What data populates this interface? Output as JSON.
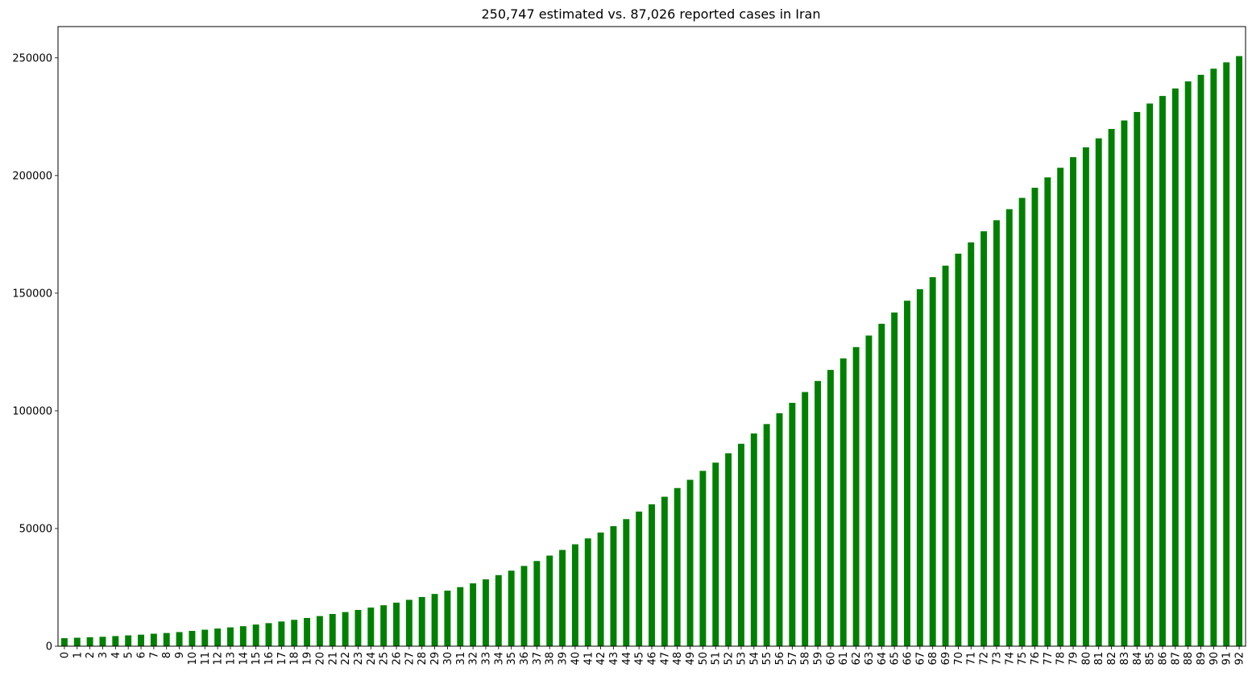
{
  "chart_data": {
    "type": "bar",
    "title": "250,747 estimated vs. 87,026 reported cases in Iran",
    "xlabel": "",
    "ylabel": "",
    "ylim": [
      0,
      263287
    ],
    "yticks": [
      0,
      50000,
      100000,
      150000,
      200000,
      250000
    ],
    "ytick_labels": [
      "0",
      "50000",
      "100000",
      "150000",
      "200000",
      "250000"
    ],
    "grid": false,
    "legend": "none",
    "bar_color": "#008000",
    "categories": [
      "0",
      "1",
      "2",
      "3",
      "4",
      "5",
      "6",
      "7",
      "8",
      "9",
      "10",
      "11",
      "12",
      "13",
      "14",
      "15",
      "16",
      "17",
      "18",
      "19",
      "20",
      "21",
      "22",
      "23",
      "24",
      "25",
      "26",
      "27",
      "28",
      "29",
      "30",
      "31",
      "32",
      "33",
      "34",
      "35",
      "36",
      "37",
      "38",
      "39",
      "40",
      "41",
      "42",
      "43",
      "44",
      "45",
      "46",
      "47",
      "48",
      "49",
      "50",
      "51",
      "52",
      "53",
      "54",
      "55",
      "56",
      "57",
      "58",
      "59",
      "60",
      "61",
      "62",
      "63",
      "64",
      "65",
      "66",
      "67",
      "68",
      "69",
      "70",
      "71",
      "72",
      "73",
      "74",
      "75",
      "76",
      "77",
      "78",
      "79",
      "80",
      "81",
      "82",
      "83",
      "84",
      "85",
      "86",
      "87",
      "88",
      "89",
      "90",
      "91",
      "92"
    ],
    "values": [
      3400,
      3600,
      3800,
      4000,
      4300,
      4600,
      4900,
      5300,
      5600,
      6000,
      6500,
      7000,
      7500,
      8000,
      8500,
      9200,
      9800,
      10500,
      11200,
      12000,
      12800,
      13700,
      14500,
      15400,
      16400,
      17400,
      18500,
      19700,
      20900,
      22200,
      23600,
      25100,
      26700,
      28400,
      30200,
      32100,
      34100,
      36200,
      38500,
      40900,
      43300,
      45800,
      48300,
      51000,
      54000,
      57200,
      60300,
      63500,
      67200,
      70700,
      74500,
      78000,
      82000,
      86000,
      90400,
      94400,
      99000,
      103400,
      108000,
      112700,
      117400,
      122300,
      127100,
      132000,
      137000,
      141800,
      146800,
      151700,
      156800,
      161700,
      166800,
      171600,
      176300,
      181000,
      185700,
      190500,
      194800,
      199200,
      203300,
      207800,
      212000,
      215800,
      219800,
      223400,
      227000,
      230600,
      233800,
      237000,
      240000,
      242800,
      245400,
      248100,
      250747
    ]
  }
}
